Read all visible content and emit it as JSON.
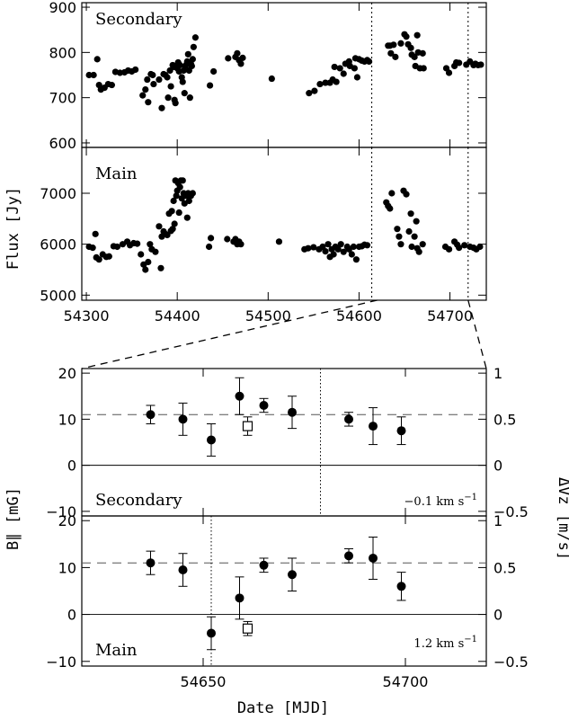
{
  "chart_data": {
    "type": "scatter",
    "top": {
      "ylabel": "Flux [Jy]",
      "xlim": [
        54295,
        54740
      ],
      "xticks": [
        54300,
        54400,
        54500,
        54600,
        54700
      ],
      "vlines": [
        54614,
        54720
      ],
      "panels": [
        {
          "name": "Secondary",
          "ylim": [
            590,
            910
          ],
          "yticks": [
            600,
            700,
            800,
            900
          ],
          "points": [
            [
              54303,
              750
            ],
            [
              54308,
              750
            ],
            [
              54312,
              785
            ],
            [
              54314,
              728
            ],
            [
              54316,
              718
            ],
            [
              54320,
              722
            ],
            [
              54324,
              730
            ],
            [
              54328,
              728
            ],
            [
              54332,
              757
            ],
            [
              54337,
              755
            ],
            [
              54342,
              756
            ],
            [
              54346,
              760
            ],
            [
              54350,
              758
            ],
            [
              54354,
              762
            ],
            [
              54362,
              705
            ],
            [
              54365,
              718
            ],
            [
              54367,
              740
            ],
            [
              54368,
              690
            ],
            [
              54371,
              752
            ],
            [
              54373,
              750
            ],
            [
              54374,
              730
            ],
            [
              54380,
              740
            ],
            [
              54383,
              677
            ],
            [
              54385,
              752
            ],
            [
              54387,
              750
            ],
            [
              54389,
              745
            ],
            [
              54390,
              700
            ],
            [
              54392,
              760
            ],
            [
              54393,
              725
            ],
            [
              54395,
              772
            ],
            [
              54396,
              768
            ],
            [
              54397,
              695
            ],
            [
              54398,
              688
            ],
            [
              54399,
              770
            ],
            [
              54400,
              765
            ],
            [
              54401,
              778
            ],
            [
              54402,
              758
            ],
            [
              54403,
              772
            ],
            [
              54405,
              745
            ],
            [
              54406,
              735
            ],
            [
              54407,
              760
            ],
            [
              54408,
              710
            ],
            [
              54409,
              770
            ],
            [
              54410,
              773
            ],
            [
              54411,
              780
            ],
            [
              54412,
              796
            ],
            [
              54413,
              760
            ],
            [
              54414,
              700
            ],
            [
              54415,
              775
            ],
            [
              54416,
              770
            ],
            [
              54417,
              785
            ],
            [
              54418,
              812
            ],
            [
              54420,
              833
            ],
            [
              54436,
              727
            ],
            [
              54440,
              758
            ],
            [
              54456,
              787
            ],
            [
              54464,
              790
            ],
            [
              54466,
              798
            ],
            [
              54468,
              783
            ],
            [
              54470,
              775
            ],
            [
              54472,
              788
            ],
            [
              54504,
              742
            ],
            [
              54545,
              710
            ],
            [
              54551,
              715
            ],
            [
              54557,
              730
            ],
            [
              54563,
              733
            ],
            [
              54568,
              733
            ],
            [
              54571,
              740
            ],
            [
              54573,
              768
            ],
            [
              54575,
              735
            ],
            [
              54579,
              765
            ],
            [
              54583,
              753
            ],
            [
              54585,
              775
            ],
            [
              54589,
              780
            ],
            [
              54590,
              770
            ],
            [
              54595,
              765
            ],
            [
              54596,
              787
            ],
            [
              54598,
              745
            ],
            [
              54600,
              785
            ],
            [
              54603,
              782
            ],
            [
              54606,
              780
            ],
            [
              54609,
              783
            ],
            [
              54611,
              780
            ],
            [
              54632,
              815
            ],
            [
              54634,
              815
            ],
            [
              54635,
              798
            ],
            [
              54638,
              817
            ],
            [
              54640,
              790
            ],
            [
              54646,
              820
            ],
            [
              54650,
              840
            ],
            [
              54652,
              835
            ],
            [
              54654,
              818
            ],
            [
              54657,
              810
            ],
            [
              54658,
              795
            ],
            [
              54661,
              790
            ],
            [
              54662,
              770
            ],
            [
              54664,
              838
            ],
            [
              54665,
              800
            ],
            [
              54667,
              765
            ],
            [
              54670,
              798
            ],
            [
              54671,
              765
            ],
            [
              54696,
              765
            ],
            [
              54699,
              755
            ],
            [
              54705,
              770
            ],
            [
              54707,
              778
            ],
            [
              54710,
              777
            ],
            [
              54718,
              773
            ],
            [
              54722,
              780
            ],
            [
              54726,
              772
            ],
            [
              54728,
              775
            ],
            [
              54731,
              772
            ],
            [
              54734,
              773
            ]
          ]
        },
        {
          "name": "Main",
          "ylim": [
            4900,
            7900
          ],
          "yticks": [
            5000,
            6000,
            7000
          ],
          "points": [
            [
              54303,
              5950
            ],
            [
              54307,
              5930
            ],
            [
              54310,
              6200
            ],
            [
              54311,
              5740
            ],
            [
              54314,
              5700
            ],
            [
              54318,
              5800
            ],
            [
              54322,
              5750
            ],
            [
              54325,
              5760
            ],
            [
              54330,
              5960
            ],
            [
              54334,
              5950
            ],
            [
              54340,
              6000
            ],
            [
              54345,
              6050
            ],
            [
              54348,
              5980
            ],
            [
              54352,
              6020
            ],
            [
              54356,
              6010
            ],
            [
              54360,
              5800
            ],
            [
              54363,
              5600
            ],
            [
              54365,
              5500
            ],
            [
              54368,
              5650
            ],
            [
              54370,
              6000
            ],
            [
              54372,
              5900
            ],
            [
              54376,
              5850
            ],
            [
              54380,
              6350
            ],
            [
              54382,
              5530
            ],
            [
              54383,
              6150
            ],
            [
              54385,
              6250
            ],
            [
              54387,
              6200
            ],
            [
              54389,
              6180
            ],
            [
              54391,
              6600
            ],
            [
              54393,
              6260
            ],
            [
              54394,
              6650
            ],
            [
              54395,
              6300
            ],
            [
              54396,
              6850
            ],
            [
              54397,
              6400
            ],
            [
              54398,
              7250
            ],
            [
              54399,
              6950
            ],
            [
              54400,
              7050
            ],
            [
              54401,
              7200
            ],
            [
              54402,
              6620
            ],
            [
              54403,
              7120
            ],
            [
              54404,
              7250
            ],
            [
              54405,
              6900
            ],
            [
              54406,
              7250
            ],
            [
              54407,
              7000
            ],
            [
              54408,
              6800
            ],
            [
              54410,
              6950
            ],
            [
              54411,
              6520
            ],
            [
              54412,
              7000
            ],
            [
              54413,
              6850
            ],
            [
              54415,
              6950
            ],
            [
              54417,
              7000
            ],
            [
              54435,
              5950
            ],
            [
              54437,
              6120
            ],
            [
              54455,
              6100
            ],
            [
              54462,
              6050
            ],
            [
              54464,
              6100
            ],
            [
              54466,
              6000
            ],
            [
              54468,
              6050
            ],
            [
              54470,
              6000
            ],
            [
              54512,
              6050
            ],
            [
              54540,
              5900
            ],
            [
              54544,
              5920
            ],
            [
              54550,
              5940
            ],
            [
              54556,
              5900
            ],
            [
              54560,
              5950
            ],
            [
              54563,
              5860
            ],
            [
              54566,
              6000
            ],
            [
              54568,
              5750
            ],
            [
              54570,
              5900
            ],
            [
              54572,
              5800
            ],
            [
              54574,
              5950
            ],
            [
              54577,
              5900
            ],
            [
              54580,
              6000
            ],
            [
              54583,
              5850
            ],
            [
              54587,
              5950
            ],
            [
              54589,
              5900
            ],
            [
              54592,
              5800
            ],
            [
              54594,
              5950
            ],
            [
              54597,
              5700
            ],
            [
              54600,
              5950
            ],
            [
              54603,
              5960
            ],
            [
              54606,
              5990
            ],
            [
              54609,
              5980
            ],
            [
              54630,
              6820
            ],
            [
              54632,
              6750
            ],
            [
              54634,
              6700
            ],
            [
              54636,
              7000
            ],
            [
              54642,
              6300
            ],
            [
              54644,
              6150
            ],
            [
              54646,
              6000
            ],
            [
              54649,
              7050
            ],
            [
              54652,
              6980
            ],
            [
              54655,
              6250
            ],
            [
              54657,
              6600
            ],
            [
              54658,
              5950
            ],
            [
              54661,
              6150
            ],
            [
              54663,
              6450
            ],
            [
              54664,
              5920
            ],
            [
              54666,
              5850
            ],
            [
              54670,
              6000
            ],
            [
              54695,
              5950
            ],
            [
              54699,
              5900
            ],
            [
              54705,
              6050
            ],
            [
              54708,
              5990
            ],
            [
              54710,
              5930
            ],
            [
              54716,
              5980
            ],
            [
              54722,
              5950
            ],
            [
              54726,
              5930
            ],
            [
              54729,
              5900
            ],
            [
              54733,
              5950
            ]
          ]
        }
      ]
    },
    "bottom": {
      "xlabel": "Date [MJD]",
      "ylabel_left": "B∥ [mG]",
      "ylabel_right": "ΔVz [m/s]",
      "xlim": [
        54620,
        54720
      ],
      "xticks": [
        54650,
        54700
      ],
      "dashed_level": 11,
      "panels": [
        {
          "name": "Secondary",
          "velocity": "−0.1 km s",
          "velocity_exp": "−1",
          "ylim": [
            -11,
            21
          ],
          "yticks_left": [
            -10,
            0,
            10,
            20
          ],
          "yticks_right": [
            "−0.5",
            "0",
            "0.5",
            "1"
          ],
          "vline": 54679,
          "points": [
            {
              "x": 54637,
              "y": 11,
              "err": 2
            },
            {
              "x": 54645,
              "y": 10,
              "err": 3.5
            },
            {
              "x": 54652,
              "y": 5.5,
              "err": 3.5
            },
            {
              "x": 54659,
              "y": 15,
              "err": 4
            },
            {
              "x": 54665,
              "y": 13,
              "err": 1.5
            },
            {
              "x": 54672,
              "y": 11.5,
              "err": 3.5
            },
            {
              "x": 54686,
              "y": 10,
              "err": 1.5
            },
            {
              "x": 54692,
              "y": 8.5,
              "err": 4
            },
            {
              "x": 54699,
              "y": 7.5,
              "err": 3
            }
          ],
          "open_points": [
            {
              "x": 54661,
              "y": 8.5,
              "err": 2
            }
          ]
        },
        {
          "name": "Main",
          "velocity": "1.2 km s",
          "velocity_exp": "−1",
          "ylim": [
            -11,
            21
          ],
          "yticks_left": [
            -10,
            0,
            10,
            20
          ],
          "yticks_right": [
            "−0.5",
            "0",
            "0.5",
            "1"
          ],
          "vline": 54652,
          "points": [
            {
              "x": 54637,
              "y": 11,
              "err": 2.5
            },
            {
              "x": 54645,
              "y": 9.5,
              "err": 3.5
            },
            {
              "x": 54652,
              "y": -4,
              "err": 3.5
            },
            {
              "x": 54659,
              "y": 3.5,
              "err": 4.5
            },
            {
              "x": 54665,
              "y": 10.5,
              "err": 1.5
            },
            {
              "x": 54672,
              "y": 8.5,
              "err": 3.5
            },
            {
              "x": 54686,
              "y": 12.5,
              "err": 1.5
            },
            {
              "x": 54692,
              "y": 12,
              "err": 4.5
            },
            {
              "x": 54699,
              "y": 6,
              "err": 3
            }
          ],
          "open_points": [
            {
              "x": 54661,
              "y": -3,
              "err": 1.5
            }
          ]
        }
      ]
    }
  }
}
